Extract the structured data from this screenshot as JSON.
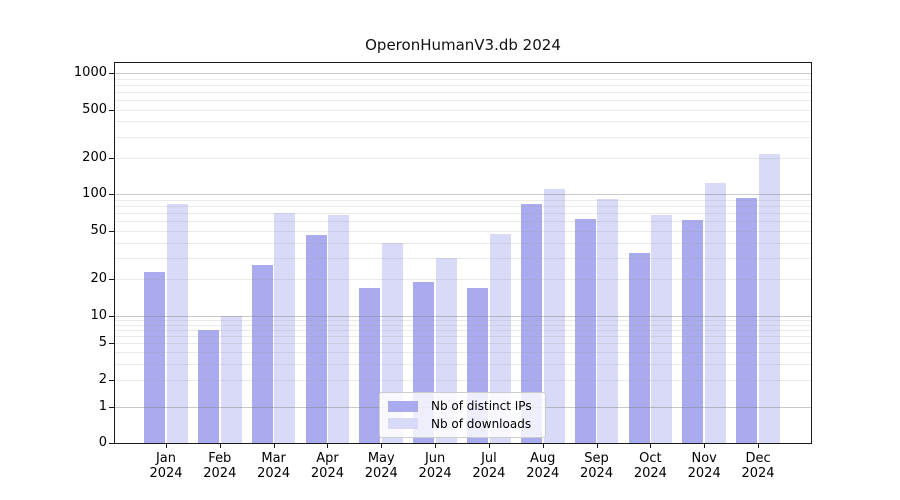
{
  "chart_data": {
    "type": "bar",
    "title": "OperonHumanV3.db 2024",
    "categories": [
      "Jan 2024",
      "Feb 2024",
      "Mar 2024",
      "Apr 2024",
      "May 2024",
      "Jun 2024",
      "Jul 2024",
      "Aug 2024",
      "Sep 2024",
      "Oct 2024",
      "Nov 2024",
      "Dec 2024"
    ],
    "series": [
      {
        "name": "Nb of distinct IPs",
        "color": "#aaaaee",
        "values": [
          23,
          7,
          26,
          46,
          17,
          19,
          17,
          83,
          63,
          33,
          61,
          93
        ]
      },
      {
        "name": "Nb of downloads",
        "color": "#d9d9f8",
        "values": [
          83,
          10,
          70,
          68,
          40,
          30,
          47,
          110,
          92,
          67,
          124,
          215
        ]
      }
    ],
    "xlabel": "",
    "ylabel": "",
    "yscale": "symlog",
    "yticks": [
      0,
      1,
      2,
      5,
      10,
      20,
      50,
      100,
      200,
      500,
      1000
    ],
    "ylim": [
      0,
      1240
    ],
    "grid": "major-and-minor",
    "legend_position": "lower-center-inside",
    "colors": {
      "axis": "#1a1a1a",
      "grid_major": "#c9c9c9",
      "grid_minor": "#eaeaea",
      "background": "#ffffff"
    }
  }
}
